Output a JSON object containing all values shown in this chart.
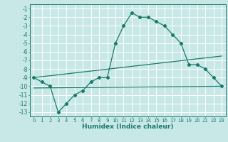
{
  "title": "",
  "xlabel": "Humidex (Indice chaleur)",
  "bg_color": "#c8e8e8",
  "grid_color": "#ffffff",
  "line_color": "#1a7a6a",
  "xlim": [
    -0.5,
    23.5
  ],
  "ylim": [
    -13.5,
    -0.5
  ],
  "xticks": [
    0,
    1,
    2,
    3,
    4,
    5,
    6,
    7,
    8,
    9,
    10,
    11,
    12,
    13,
    14,
    15,
    16,
    17,
    18,
    19,
    20,
    21,
    22,
    23
  ],
  "yticks": [
    -1,
    -2,
    -3,
    -4,
    -5,
    -6,
    -7,
    -8,
    -9,
    -10,
    -11,
    -12,
    -13
  ],
  "curve1_x": [
    0,
    1,
    2,
    3,
    4,
    5,
    6,
    7,
    8,
    9,
    10,
    11,
    12,
    13,
    14,
    15,
    16,
    17,
    18,
    19,
    20,
    21,
    22,
    23
  ],
  "curve1_y": [
    -9,
    -9.5,
    -10,
    -13,
    -12,
    -11,
    -10.5,
    -9.5,
    -9,
    -9,
    -5,
    -3,
    -1.5,
    -2,
    -2,
    -2.5,
    -3,
    -4,
    -5,
    -7.5,
    -7.5,
    -8,
    -9,
    -10
  ],
  "curve2_x": [
    0,
    23
  ],
  "curve2_y": [
    -9,
    -6.5
  ],
  "curve3_x": [
    0,
    23
  ],
  "curve3_y": [
    -10.2,
    -10.0
  ],
  "font_size_xlabel": 6.5,
  "font_size_yticks": 5.5,
  "font_size_xticks": 5.0,
  "linewidth": 0.9,
  "markersize": 2.2
}
